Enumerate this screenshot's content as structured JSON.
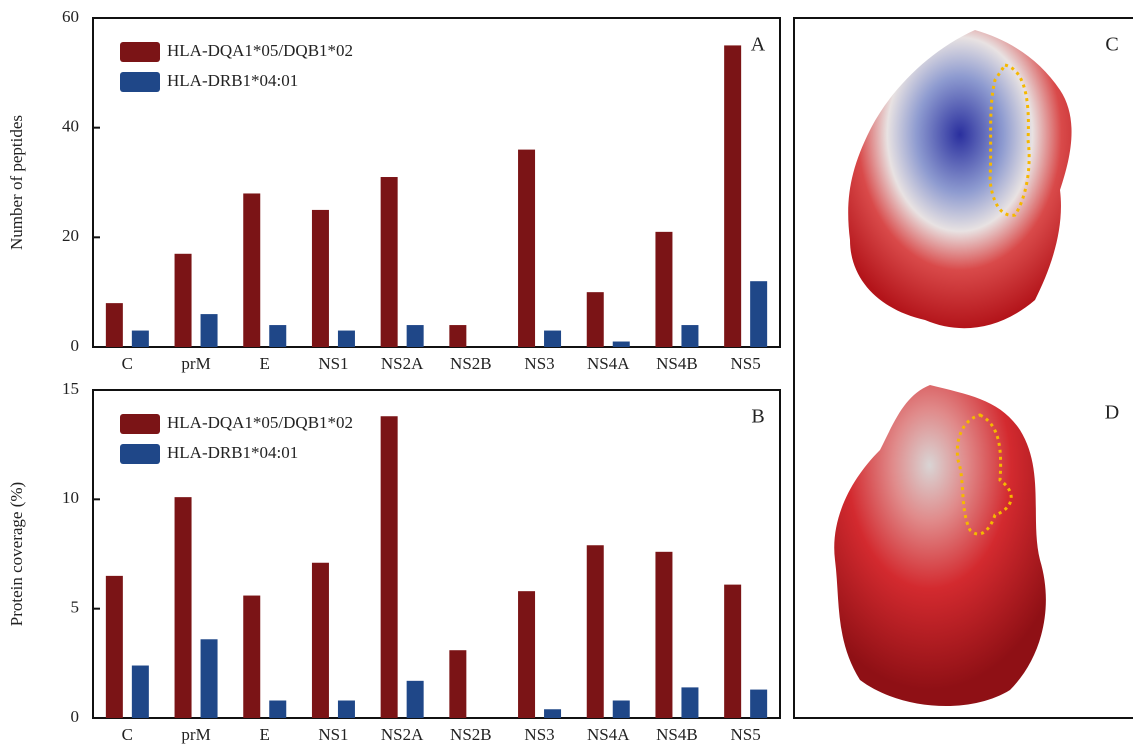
{
  "chart_data": [
    {
      "type": "bar",
      "annotation": "A",
      "y_label": "Number of peptides",
      "categories": [
        "C",
        "prM",
        "E",
        "NS1",
        "NS2A",
        "NS2B",
        "NS3",
        "NS4A",
        "NS4B",
        "NS5"
      ],
      "series": [
        {
          "name": "HLA-DQA1*05/DQB1*02",
          "color": "#7b1416",
          "values": [
            8,
            17,
            28,
            25,
            31,
            4,
            36,
            10,
            21,
            55
          ]
        },
        {
          "name": "HLA-DRB1*04:01",
          "color": "#1f4788",
          "values": [
            3,
            6,
            4,
            3,
            4,
            0,
            3,
            1,
            4,
            12
          ]
        }
      ],
      "ylim": [
        0,
        60
      ],
      "yticks": [
        0,
        20,
        40,
        60
      ]
    },
    {
      "type": "bar",
      "annotation": "B",
      "y_label": "Protein coverage (%)",
      "categories": [
        "C",
        "prM",
        "E",
        "NS1",
        "NS2A",
        "NS2B",
        "NS3",
        "NS4A",
        "NS4B",
        "NS5"
      ],
      "series": [
        {
          "name": "HLA-DQA1*05/DQB1*02",
          "color": "#7b1416",
          "values": [
            6.5,
            10.1,
            5.6,
            7.1,
            13.8,
            3.1,
            5.8,
            7.9,
            7.6,
            6.1
          ]
        },
        {
          "name": "HLA-DRB1*04:01",
          "color": "#1f4788",
          "values": [
            2.4,
            3.6,
            0.8,
            0.8,
            1.7,
            0,
            0.4,
            0.8,
            1.4,
            1.3
          ]
        }
      ],
      "ylim": [
        0,
        15
      ],
      "yticks": [
        0,
        5,
        10,
        15
      ]
    }
  ],
  "images": [
    {
      "label": "C"
    },
    {
      "label": "D"
    }
  ]
}
